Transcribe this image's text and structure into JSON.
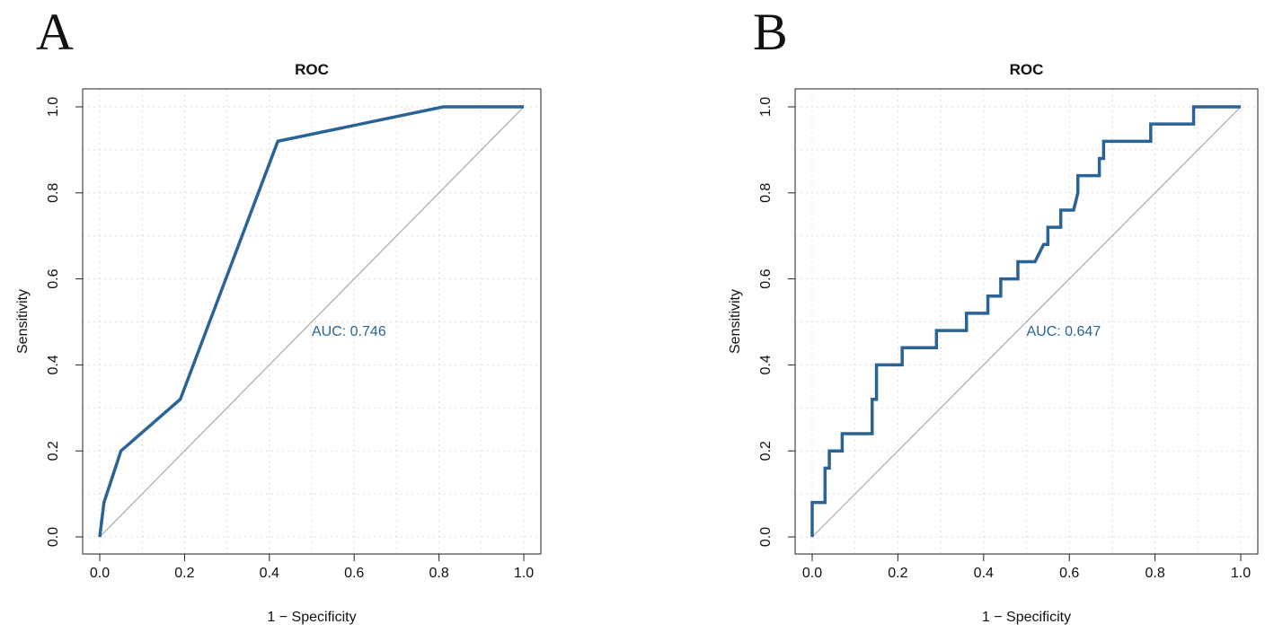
{
  "chart_data": [
    {
      "panel": "A",
      "type": "line",
      "title": "ROC",
      "xlabel": "1 − Specificity",
      "ylabel": "Sensitivity",
      "xlim": [
        0,
        1
      ],
      "ylim": [
        0,
        1
      ],
      "grid": true,
      "xticks": [
        "0.0",
        "0.2",
        "0.4",
        "0.6",
        "0.8",
        "1.0"
      ],
      "yticks": [
        "0.0",
        "0.2",
        "0.4",
        "0.6",
        "0.8",
        "1.0"
      ],
      "annotation": "AUC: 0.746",
      "color": "#2a6496",
      "x": [
        0,
        0.01,
        0.05,
        0.19,
        0.42,
        0.81,
        1
      ],
      "y": [
        0,
        0.08,
        0.2,
        0.32,
        0.92,
        1,
        1
      ]
    },
    {
      "panel": "B",
      "type": "line",
      "title": "ROC",
      "xlabel": "1 − Specificity",
      "ylabel": "Sensitivity",
      "xlim": [
        0,
        1
      ],
      "ylim": [
        0,
        1
      ],
      "grid": true,
      "xticks": [
        "0.0",
        "0.2",
        "0.4",
        "0.6",
        "0.8",
        "1.0"
      ],
      "yticks": [
        "0.0",
        "0.2",
        "0.4",
        "0.6",
        "0.8",
        "1.0"
      ],
      "annotation": "AUC: 0.647",
      "color": "#2a6496",
      "x": [
        0,
        0,
        0.03,
        0.03,
        0.04,
        0.04,
        0.07,
        0.07,
        0.14,
        0.14,
        0.15,
        0.15,
        0.21,
        0.21,
        0.29,
        0.29,
        0.36,
        0.36,
        0.41,
        0.41,
        0.44,
        0.44,
        0.48,
        0.48,
        0.52,
        0.54,
        0.55,
        0.55,
        0.58,
        0.58,
        0.61,
        0.62,
        0.62,
        0.67,
        0.67,
        0.68,
        0.68,
        0.79,
        0.79,
        0.89,
        0.89,
        1
      ],
      "y": [
        0,
        0.08,
        0.08,
        0.16,
        0.16,
        0.2,
        0.2,
        0.24,
        0.24,
        0.32,
        0.32,
        0.4,
        0.4,
        0.44,
        0.44,
        0.48,
        0.48,
        0.52,
        0.52,
        0.56,
        0.56,
        0.6,
        0.6,
        0.64,
        0.64,
        0.68,
        0.68,
        0.72,
        0.72,
        0.76,
        0.76,
        0.8,
        0.84,
        0.84,
        0.88,
        0.88,
        0.92,
        0.92,
        0.96,
        0.96,
        1,
        1
      ]
    }
  ]
}
